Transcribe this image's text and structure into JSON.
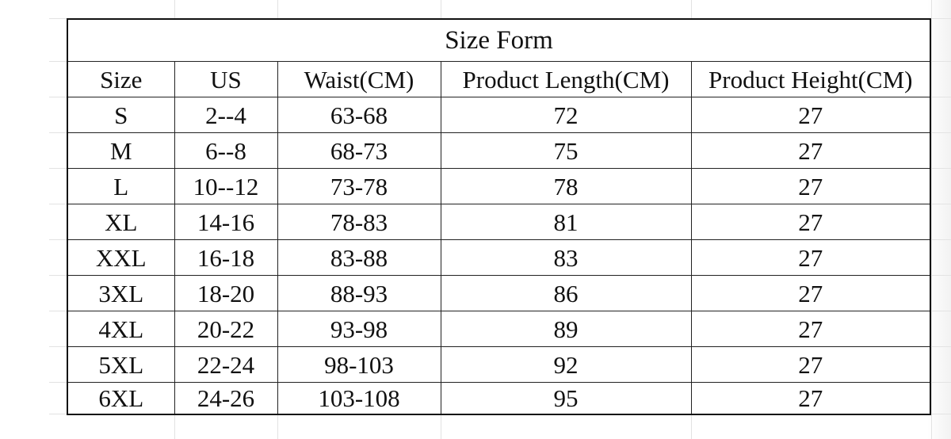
{
  "title": "Size Form",
  "columns": [
    "Size",
    "US",
    "Waist(CM)",
    "Product Length(CM)",
    "Product Height(CM)"
  ],
  "rows": [
    [
      "S",
      "2--4",
      "63-68",
      "72",
      "27"
    ],
    [
      "M",
      "6--8",
      "68-73",
      "75",
      "27"
    ],
    [
      "L",
      "10--12",
      "73-78",
      "78",
      "27"
    ],
    [
      "XL",
      "14-16",
      "78-83",
      "81",
      "27"
    ],
    [
      "XXL",
      "16-18",
      "83-88",
      "83",
      "27"
    ],
    [
      "3XL",
      "18-20",
      "88-93",
      "86",
      "27"
    ],
    [
      "4XL",
      "20-22",
      "93-98",
      "89",
      "27"
    ],
    [
      "5XL",
      "22-24",
      "98-103",
      "92",
      "27"
    ],
    [
      "6XL",
      "24-26",
      "103-108",
      "95",
      "27"
    ]
  ]
}
